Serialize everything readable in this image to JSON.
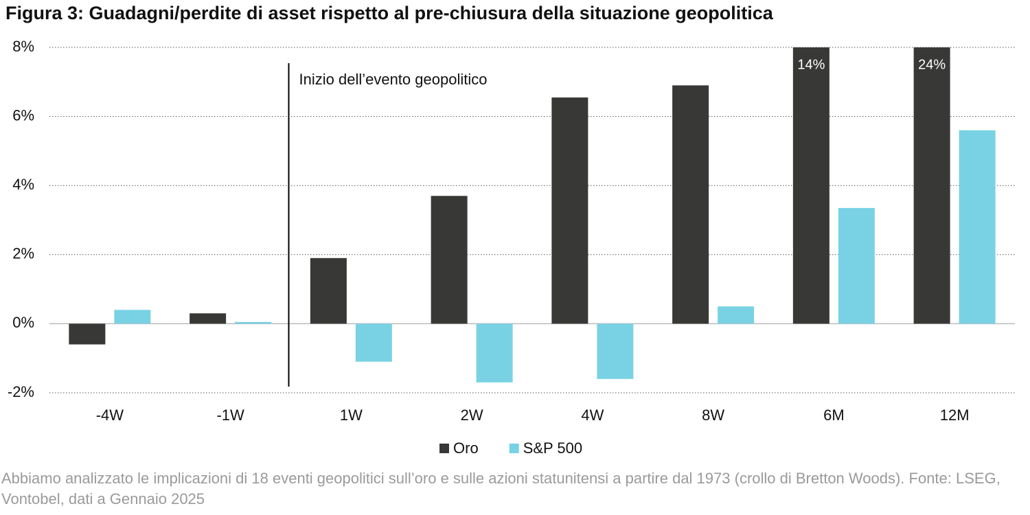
{
  "chart_data": {
    "type": "bar",
    "title": "Figura 3: Guadagni/perdite di asset rispetto al pre-chiusura della situazione geopolitica",
    "categories": [
      "-4W",
      "-1W",
      "1W",
      "2W",
      "4W",
      "8W",
      "6M",
      "12M"
    ],
    "series": [
      {
        "name": "Oro",
        "color": "#383936",
        "values": [
          -0.6,
          0.3,
          1.9,
          3.7,
          6.55,
          6.9,
          14,
          24
        ],
        "value_labels": [
          null,
          null,
          null,
          null,
          null,
          null,
          "14%",
          "24%"
        ]
      },
      {
        "name": "S&P 500",
        "color": "#79d2e4",
        "values": [
          0.4,
          0.05,
          -1.1,
          -1.7,
          -1.6,
          0.5,
          3.35,
          5.6
        ]
      }
    ],
    "ylim": [
      -2,
      8
    ],
    "yticks": [
      {
        "value": -2,
        "label": "-2%"
      },
      {
        "value": 0,
        "label": "0%"
      },
      {
        "value": 2,
        "label": "2%"
      },
      {
        "value": 4,
        "label": "4%"
      },
      {
        "value": 6,
        "label": "6%"
      },
      {
        "value": 8,
        "label": "8%"
      }
    ],
    "grid": true,
    "annotation": "Inizio dell’evento geopolitico",
    "legend": "bottom",
    "note": "Abbiamo analizzato le implicazioni di 18 eventi geopolitici sull’oro e sulle azioni statunitensi a partire dal 1973 (crollo di Bretton Woods). Fonte: LSEG, Vontobel, dati a Gennaio 2025"
  }
}
